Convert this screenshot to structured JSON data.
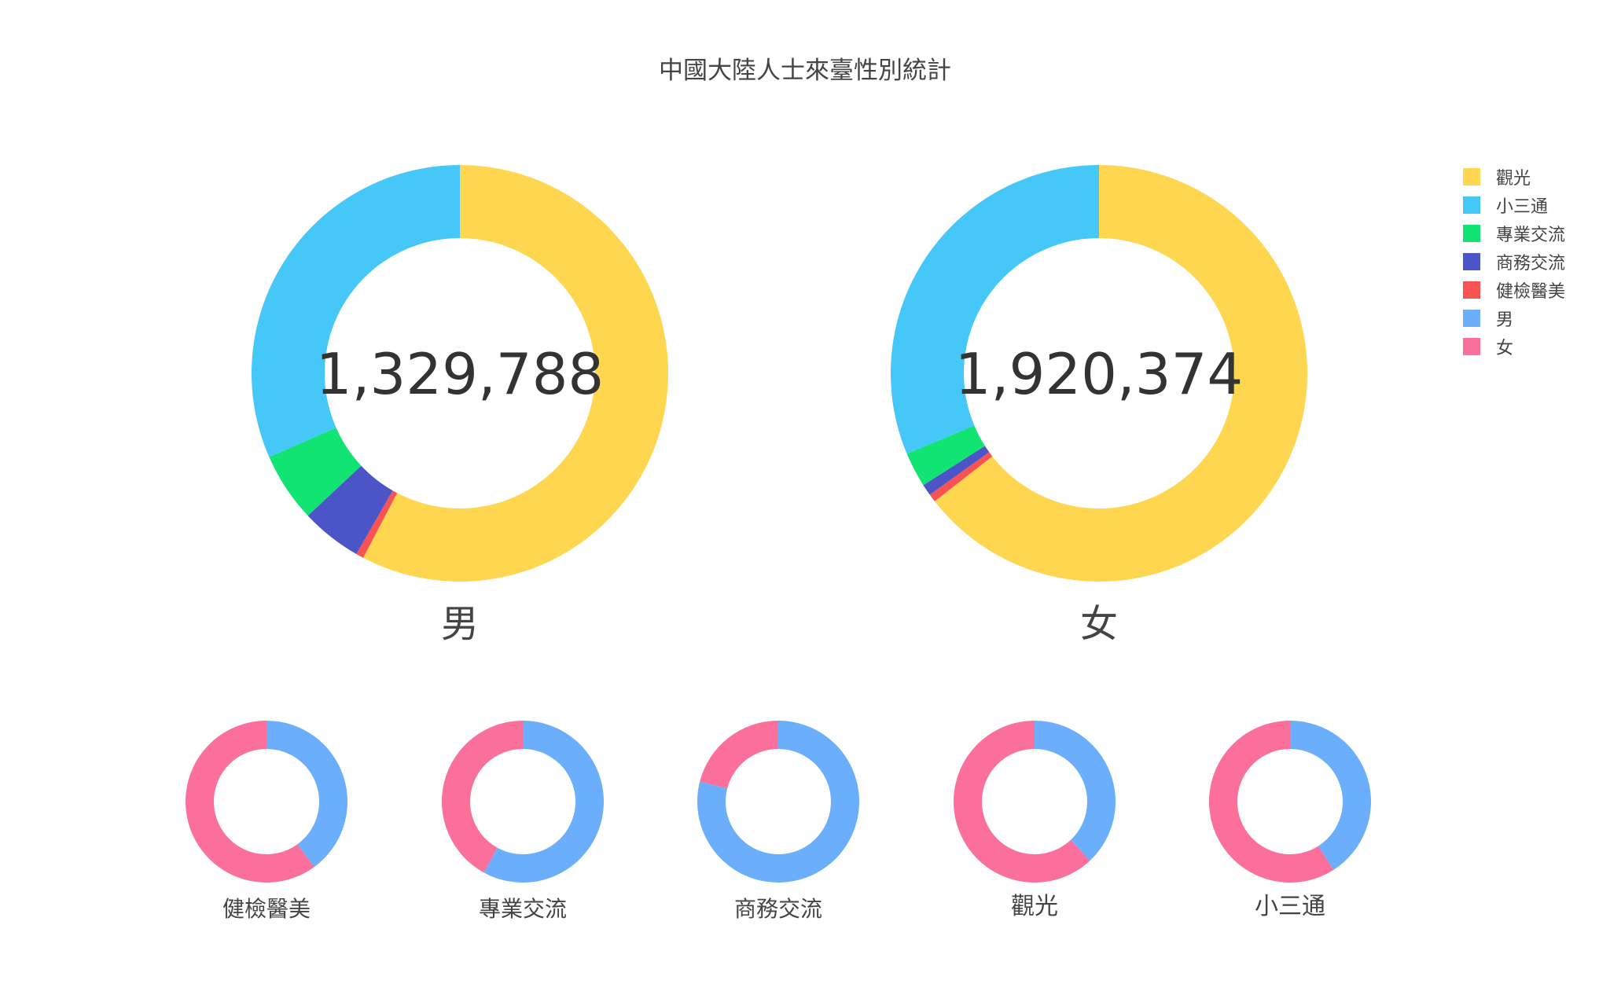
{
  "title": "中國大陸人士來臺性別統計",
  "legend": {
    "placement": "top-right",
    "items": [
      {
        "label": "觀光",
        "color": "#FFD650"
      },
      {
        "label": "小三通",
        "color": "#45C8F8"
      },
      {
        "label": "專業交流",
        "color": "#12E474"
      },
      {
        "label": "商務交流",
        "color": "#4B55C8"
      },
      {
        "label": "健檢醫美",
        "color": "#F95252"
      },
      {
        "label": "男",
        "color": "#6AAEFC"
      },
      {
        "label": "女",
        "color": "#FB6F9B"
      }
    ]
  },
  "chart_data": [
    {
      "type": "pie",
      "hole": true,
      "label": "男",
      "center_text": "1,329,788",
      "slices": [
        {
          "name": "觀光",
          "value": 767000,
          "color": "#FFD650"
        },
        {
          "name": "健檢醫美",
          "value": 8000,
          "color": "#F95252"
        },
        {
          "name": "商務交流",
          "value": 63000,
          "color": "#4B55C8"
        },
        {
          "name": "專業交流",
          "value": 71800,
          "color": "#12E474"
        },
        {
          "name": "小三通",
          "value": 419988,
          "color": "#45C8F8"
        }
      ]
    },
    {
      "type": "pie",
      "hole": true,
      "label": "女",
      "center_text": "1,920,374",
      "slices": [
        {
          "name": "觀光",
          "value": 1238000,
          "color": "#FFD650"
        },
        {
          "name": "健檢醫美",
          "value": 12000,
          "color": "#F95252"
        },
        {
          "name": "商務交流",
          "value": 17000,
          "color": "#4B55C8"
        },
        {
          "name": "專業交流",
          "value": 52000,
          "color": "#12E474"
        },
        {
          "name": "小三通",
          "value": 601374,
          "color": "#45C8F8"
        }
      ]
    },
    {
      "type": "pie",
      "hole": true,
      "label": "健檢醫美",
      "slices": [
        {
          "name": "男",
          "value": 0.4,
          "color": "#6AAEFC"
        },
        {
          "name": "女",
          "value": 0.6,
          "color": "#FB6F9B"
        }
      ]
    },
    {
      "type": "pie",
      "hole": true,
      "label": "專業交流",
      "slices": [
        {
          "name": "男",
          "value": 0.58,
          "color": "#6AAEFC"
        },
        {
          "name": "女",
          "value": 0.42,
          "color": "#FB6F9B"
        }
      ]
    },
    {
      "type": "pie",
      "hole": true,
      "label": "商務交流",
      "slices": [
        {
          "name": "男",
          "value": 0.79,
          "color": "#6AAEFC"
        },
        {
          "name": "女",
          "value": 0.21,
          "color": "#FB6F9B"
        }
      ]
    },
    {
      "type": "pie",
      "hole": true,
      "label": "觀光",
      "slices": [
        {
          "name": "男",
          "value": 0.38,
          "color": "#6AAEFC"
        },
        {
          "name": "女",
          "value": 0.62,
          "color": "#FB6F9B"
        }
      ]
    },
    {
      "type": "pie",
      "hole": true,
      "label": "小三通",
      "slices": [
        {
          "name": "男",
          "value": 0.41,
          "color": "#6AAEFC"
        },
        {
          "name": "女",
          "value": 0.59,
          "color": "#FB6F9B"
        }
      ]
    }
  ]
}
